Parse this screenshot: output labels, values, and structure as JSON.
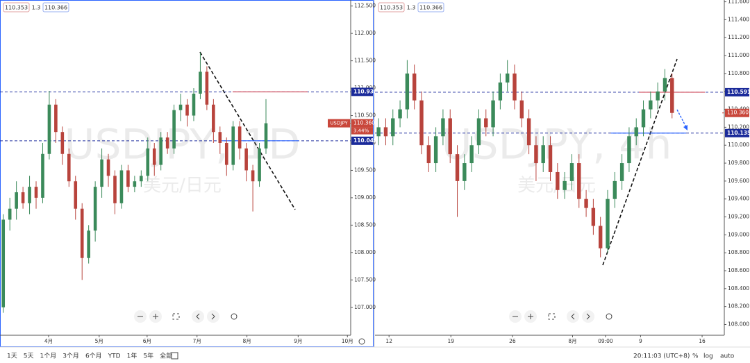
{
  "chart_data": [
    {
      "type": "candlestick",
      "header": [
        "110.353",
        "1.3",
        "110.366"
      ],
      "watermark": [
        "USDJPY, 1D",
        "美元/日元"
      ],
      "up_color": "#3b8a5a",
      "down_color": "#b8433c",
      "grid": false,
      "x": [
        0,
        1,
        2,
        3,
        4,
        5,
        6,
        7,
        8,
        9,
        10,
        11,
        12,
        13,
        14,
        15,
        16,
        17,
        18,
        19,
        20,
        21,
        22,
        23,
        24,
        25,
        26,
        27,
        28,
        29,
        30,
        31,
        32,
        33,
        34,
        35,
        36,
        37,
        38,
        39,
        40
      ],
      "open": [
        107.0,
        108.6,
        108.8,
        109.1,
        108.9,
        109.2,
        109.0,
        109.8,
        110.7,
        110.2,
        109.8,
        109.3,
        108.8,
        107.9,
        108.4,
        109.2,
        109.7,
        109.4,
        108.9,
        109.5,
        109.2,
        109.3,
        109.4,
        109.9,
        109.6,
        110.1,
        109.9,
        110.6,
        110.7,
        110.5,
        110.9,
        111.3,
        110.7,
        110.2,
        110.0,
        109.6,
        110.3,
        109.9,
        109.5,
        109.3,
        109.9
      ],
      "high": [
        108.7,
        109.0,
        109.3,
        109.2,
        109.4,
        109.3,
        110.0,
        110.95,
        110.8,
        110.3,
        109.9,
        109.4,
        108.9,
        108.5,
        109.3,
        109.9,
        109.8,
        109.5,
        109.6,
        109.6,
        109.4,
        109.5,
        110.1,
        110.0,
        110.2,
        110.2,
        110.7,
        110.9,
        110.8,
        111.0,
        111.65,
        111.4,
        110.8,
        110.3,
        110.1,
        110.4,
        110.4,
        110.0,
        109.6,
        110.0,
        110.8
      ],
      "low": [
        106.9,
        108.4,
        108.6,
        108.8,
        108.7,
        108.8,
        108.9,
        109.7,
        110.0,
        109.6,
        109.2,
        108.6,
        107.5,
        107.8,
        108.2,
        109.0,
        109.2,
        108.7,
        108.8,
        109.1,
        109.1,
        109.2,
        109.3,
        109.4,
        109.5,
        109.8,
        109.8,
        110.4,
        110.3,
        110.4,
        110.8,
        110.6,
        110.0,
        109.8,
        109.4,
        109.5,
        109.7,
        109.3,
        108.75,
        109.2,
        109.8
      ],
      "close": [
        108.6,
        108.8,
        109.1,
        108.9,
        109.2,
        109.0,
        109.8,
        110.7,
        110.2,
        109.8,
        109.3,
        108.8,
        107.9,
        108.4,
        109.2,
        109.7,
        109.4,
        108.9,
        109.5,
        109.2,
        109.3,
        109.4,
        109.9,
        109.6,
        110.1,
        109.9,
        110.6,
        110.7,
        110.5,
        110.9,
        111.3,
        110.7,
        110.2,
        110.0,
        109.6,
        110.3,
        109.9,
        109.5,
        109.3,
        109.9,
        110.36
      ],
      "xlim": [
        -0.5,
        52.9
      ],
      "xticks": [
        {
          "value": 6.9,
          "label": "4月"
        },
        {
          "value": 14.6,
          "label": "5月"
        },
        {
          "value": 21.9,
          "label": "6月"
        },
        {
          "value": 29.5,
          "label": "7月"
        },
        {
          "value": 37.1,
          "label": "8月"
        },
        {
          "value": 44.9,
          "label": "9月"
        },
        {
          "value": 52.4,
          "label": "10月"
        }
      ],
      "ylim": [
        106.49,
        112.61
      ],
      "yticks": [
        {
          "value": 107,
          "label": "107.000"
        },
        {
          "value": 107.5,
          "label": "107.500"
        },
        {
          "value": 108,
          "label": "108.000"
        },
        {
          "value": 108.5,
          "label": "108.500"
        },
        {
          "value": 109,
          "label": "109.000"
        },
        {
          "value": 109.5,
          "label": "109.500"
        },
        {
          "value": 110,
          "label": "110.000"
        },
        {
          "value": 110.5,
          "label": "110.500"
        },
        {
          "value": 111,
          "label": "111.000"
        },
        {
          "value": 111.5,
          "label": "111.500"
        },
        {
          "value": 112,
          "label": "112.000"
        },
        {
          "value": 112.5,
          "label": "112.500"
        }
      ],
      "hlines": [
        {
          "value": 110.933,
          "label": "110.933"
        },
        {
          "value": 110.04,
          "label": "110.040"
        }
      ],
      "price_tag": {
        "name": "USDJPY",
        "value": 110.36,
        "label": "110.360",
        "change": "3.44%"
      }
    },
    {
      "type": "candlestick",
      "header": [
        "110.353",
        "1.3",
        "110.366"
      ],
      "watermark": [
        "USDJPY, 4h",
        "美元/日元"
      ],
      "up_color": "#3b8a5a",
      "down_color": "#b8433c",
      "grid": false,
      "x": [
        0,
        1,
        2,
        3,
        4,
        5,
        6,
        7,
        8,
        9,
        10,
        11,
        12,
        13,
        14,
        15,
        16,
        17,
        18,
        19,
        20,
        21,
        22,
        23,
        24,
        25,
        26,
        27,
        28,
        29,
        30,
        31,
        32,
        33,
        34,
        35,
        36,
        37,
        38,
        39,
        40,
        41
      ],
      "open": [
        110.1,
        110.2,
        110.1,
        110.3,
        110.4,
        110.8,
        110.5,
        110.0,
        109.8,
        110.1,
        110.3,
        109.9,
        109.6,
        109.8,
        110.0,
        110.3,
        110.2,
        110.5,
        110.7,
        110.8,
        110.5,
        110.3,
        110.0,
        109.8,
        110.0,
        109.7,
        109.5,
        109.6,
        109.8,
        109.4,
        109.3,
        109.1,
        108.85,
        109.4,
        109.6,
        109.8,
        110.1,
        110.2,
        110.4,
        110.5,
        110.6,
        110.75
      ],
      "high": [
        110.3,
        110.3,
        110.4,
        110.5,
        110.95,
        110.9,
        110.6,
        110.1,
        110.2,
        110.4,
        110.4,
        110.0,
        109.9,
        110.1,
        110.4,
        110.4,
        110.6,
        110.8,
        110.95,
        110.9,
        110.6,
        110.4,
        110.1,
        110.1,
        110.1,
        109.8,
        109.7,
        109.9,
        109.9,
        109.5,
        109.4,
        109.2,
        109.5,
        109.7,
        109.9,
        110.2,
        110.3,
        110.5,
        110.6,
        110.7,
        110.85,
        110.8
      ],
      "low": [
        110.0,
        110.0,
        110.0,
        110.2,
        110.3,
        110.4,
        109.9,
        109.7,
        109.7,
        110.0,
        109.8,
        109.2,
        109.5,
        109.7,
        109.9,
        110.1,
        110.1,
        110.4,
        110.6,
        110.4,
        110.2,
        109.9,
        109.6,
        109.7,
        109.6,
        109.4,
        109.4,
        109.5,
        109.3,
        109.2,
        109.0,
        108.75,
        108.8,
        109.3,
        109.5,
        109.7,
        110.0,
        110.1,
        110.3,
        110.4,
        110.5,
        110.3
      ],
      "close": [
        110.2,
        110.1,
        110.3,
        110.4,
        110.8,
        110.5,
        110.0,
        109.8,
        110.1,
        110.3,
        109.9,
        109.6,
        109.8,
        110.0,
        110.3,
        110.2,
        110.5,
        110.7,
        110.8,
        110.5,
        110.3,
        110.0,
        109.8,
        110.0,
        109.7,
        109.5,
        109.6,
        109.8,
        109.4,
        109.3,
        109.1,
        108.85,
        109.4,
        109.6,
        109.8,
        110.1,
        110.2,
        110.4,
        110.5,
        110.6,
        110.75,
        110.36
      ],
      "xlim": [
        -0.5,
        48.3
      ],
      "xticks": [
        {
          "value": 1.46,
          "label": "12"
        },
        {
          "value": 10.1,
          "label": "19"
        },
        {
          "value": 18.7,
          "label": "26"
        },
        {
          "value": 27.1,
          "label": "8月"
        },
        {
          "value": 31.7,
          "label": "09:00"
        },
        {
          "value": 36.6,
          "label": "9"
        },
        {
          "value": 45.2,
          "label": "16"
        }
      ],
      "ylim": [
        107.88,
        111.62
      ],
      "yticks": [
        {
          "value": 108,
          "label": "108.000"
        },
        {
          "value": 108.2,
          "label": "108.200"
        },
        {
          "value": 108.4,
          "label": "108.400"
        },
        {
          "value": 108.6,
          "label": "108.600"
        },
        {
          "value": 108.8,
          "label": "108.800"
        },
        {
          "value": 109,
          "label": "109.000"
        },
        {
          "value": 109.2,
          "label": "109.200"
        },
        {
          "value": 109.4,
          "label": "109.400"
        },
        {
          "value": 109.6,
          "label": "109.600"
        },
        {
          "value": 109.8,
          "label": "109.800"
        },
        {
          "value": 110,
          "label": "110.000"
        },
        {
          "value": 110.2,
          "label": "110.200"
        },
        {
          "value": 110.4,
          "label": "110.400"
        },
        {
          "value": 110.6,
          "label": "110.600"
        },
        {
          "value": 110.8,
          "label": "110.800"
        },
        {
          "value": 111,
          "label": "111.000"
        },
        {
          "value": 111.2,
          "label": "111.200"
        },
        {
          "value": 111.4,
          "label": "111.400"
        },
        {
          "value": 111.6,
          "label": "111.600"
        }
      ],
      "hlines": [
        {
          "value": 110.591,
          "label": "110.591"
        },
        {
          "value": 110.135,
          "label": "110.135"
        }
      ],
      "price_tag": {
        "value": 110.36,
        "label": "110.360"
      }
    }
  ],
  "toolbar": {
    "ranges": [
      "1天",
      "5天",
      "1个月",
      "3个月",
      "6个月",
      "YTD",
      "1年",
      "5年",
      "全部"
    ],
    "clock": "20:11:03 (UTC+8)",
    "scales": [
      "%",
      "log",
      "auto"
    ]
  }
}
